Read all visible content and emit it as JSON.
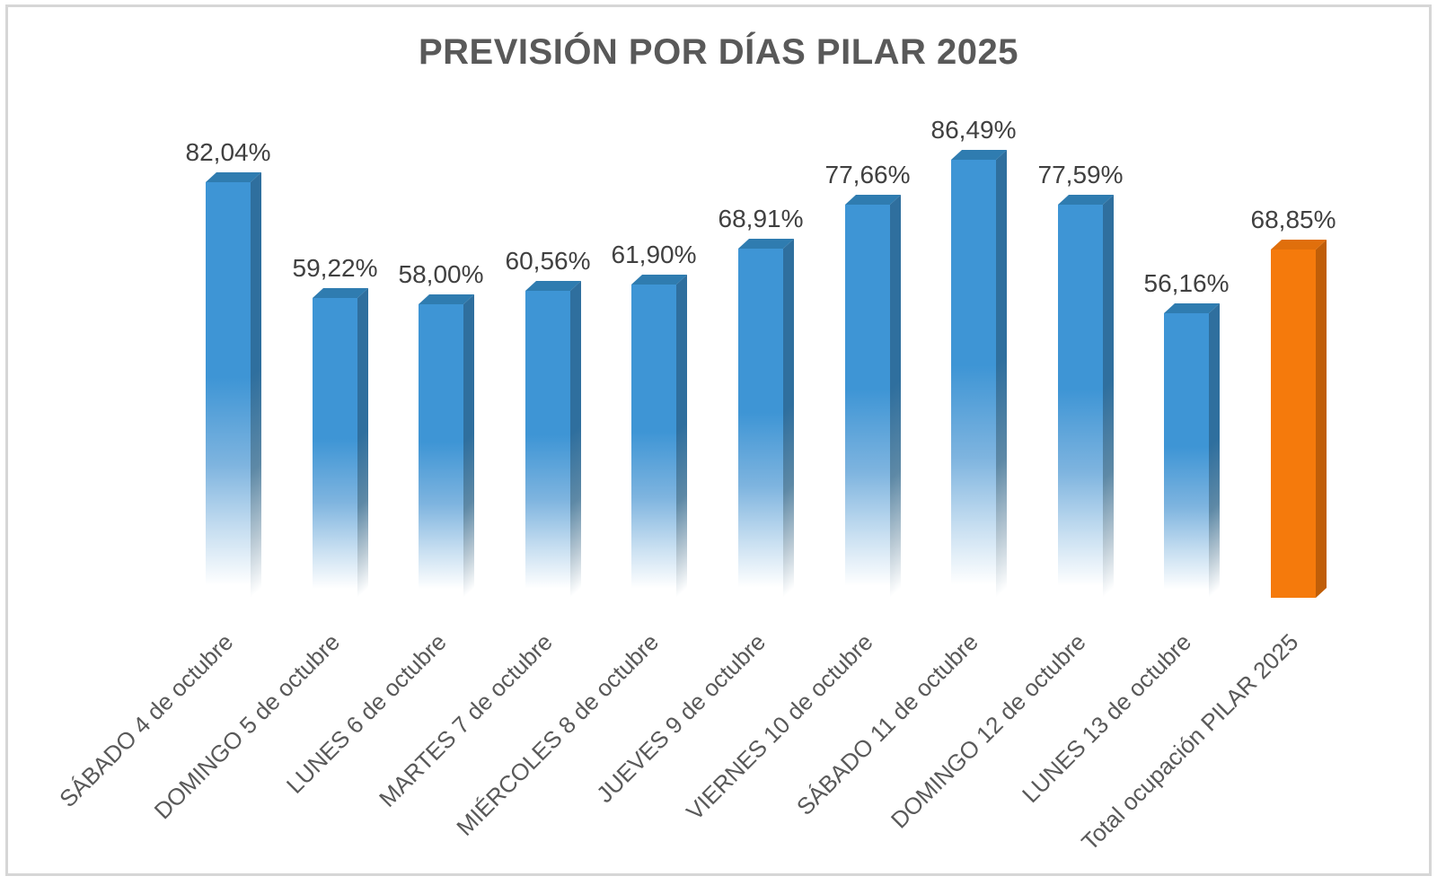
{
  "chart_data": {
    "type": "bar",
    "title": "PREVISIÓN POR DÍAS PILAR 2025",
    "categories": [
      "SÁBADO 4 de octubre",
      "DOMINGO 5 de octubre",
      "LUNES 6 de octubre",
      "MARTES 7 de octubre",
      "MIÉRCOLES 8 de octubre",
      "JUEVES 9 de octubre",
      "VIERNES 10 de octubre",
      "SÁBADO 11 de octubre",
      "DOMINGO 12 de octubre",
      "LUNES 13 de octubre",
      "Total ocupación PILAR 2025"
    ],
    "values": [
      82.04,
      59.22,
      58.0,
      60.56,
      61.9,
      68.91,
      77.66,
      86.49,
      77.59,
      56.16,
      68.85
    ],
    "value_labels": [
      "82,04%",
      "59,22%",
      "58,00%",
      "60,56%",
      "61,90%",
      "68,91%",
      "77,66%",
      "86,49%",
      "77,59%",
      "56,16%",
      "68,85%"
    ],
    "unit": "%",
    "xlabel": "",
    "ylabel": "",
    "axis_hidden": true,
    "grid": false,
    "legend": false,
    "data_labels_position": "outside-end",
    "category_label_rotation_deg": 45,
    "bar_style": "3d-box-gradient-fade",
    "colors": {
      "bar_front": "#3E95D5",
      "bar_side": "#2F6F9E",
      "bar_top": "#2F7CB0",
      "total_bar_front": "#F57A0C",
      "total_bar_side": "#C05E08",
      "total_bar_top": "#E06F0C",
      "value_label_text": "#404040",
      "category_label_text": "#595959",
      "title_text": "#595959",
      "frame_border": "#D6D6D6"
    }
  }
}
